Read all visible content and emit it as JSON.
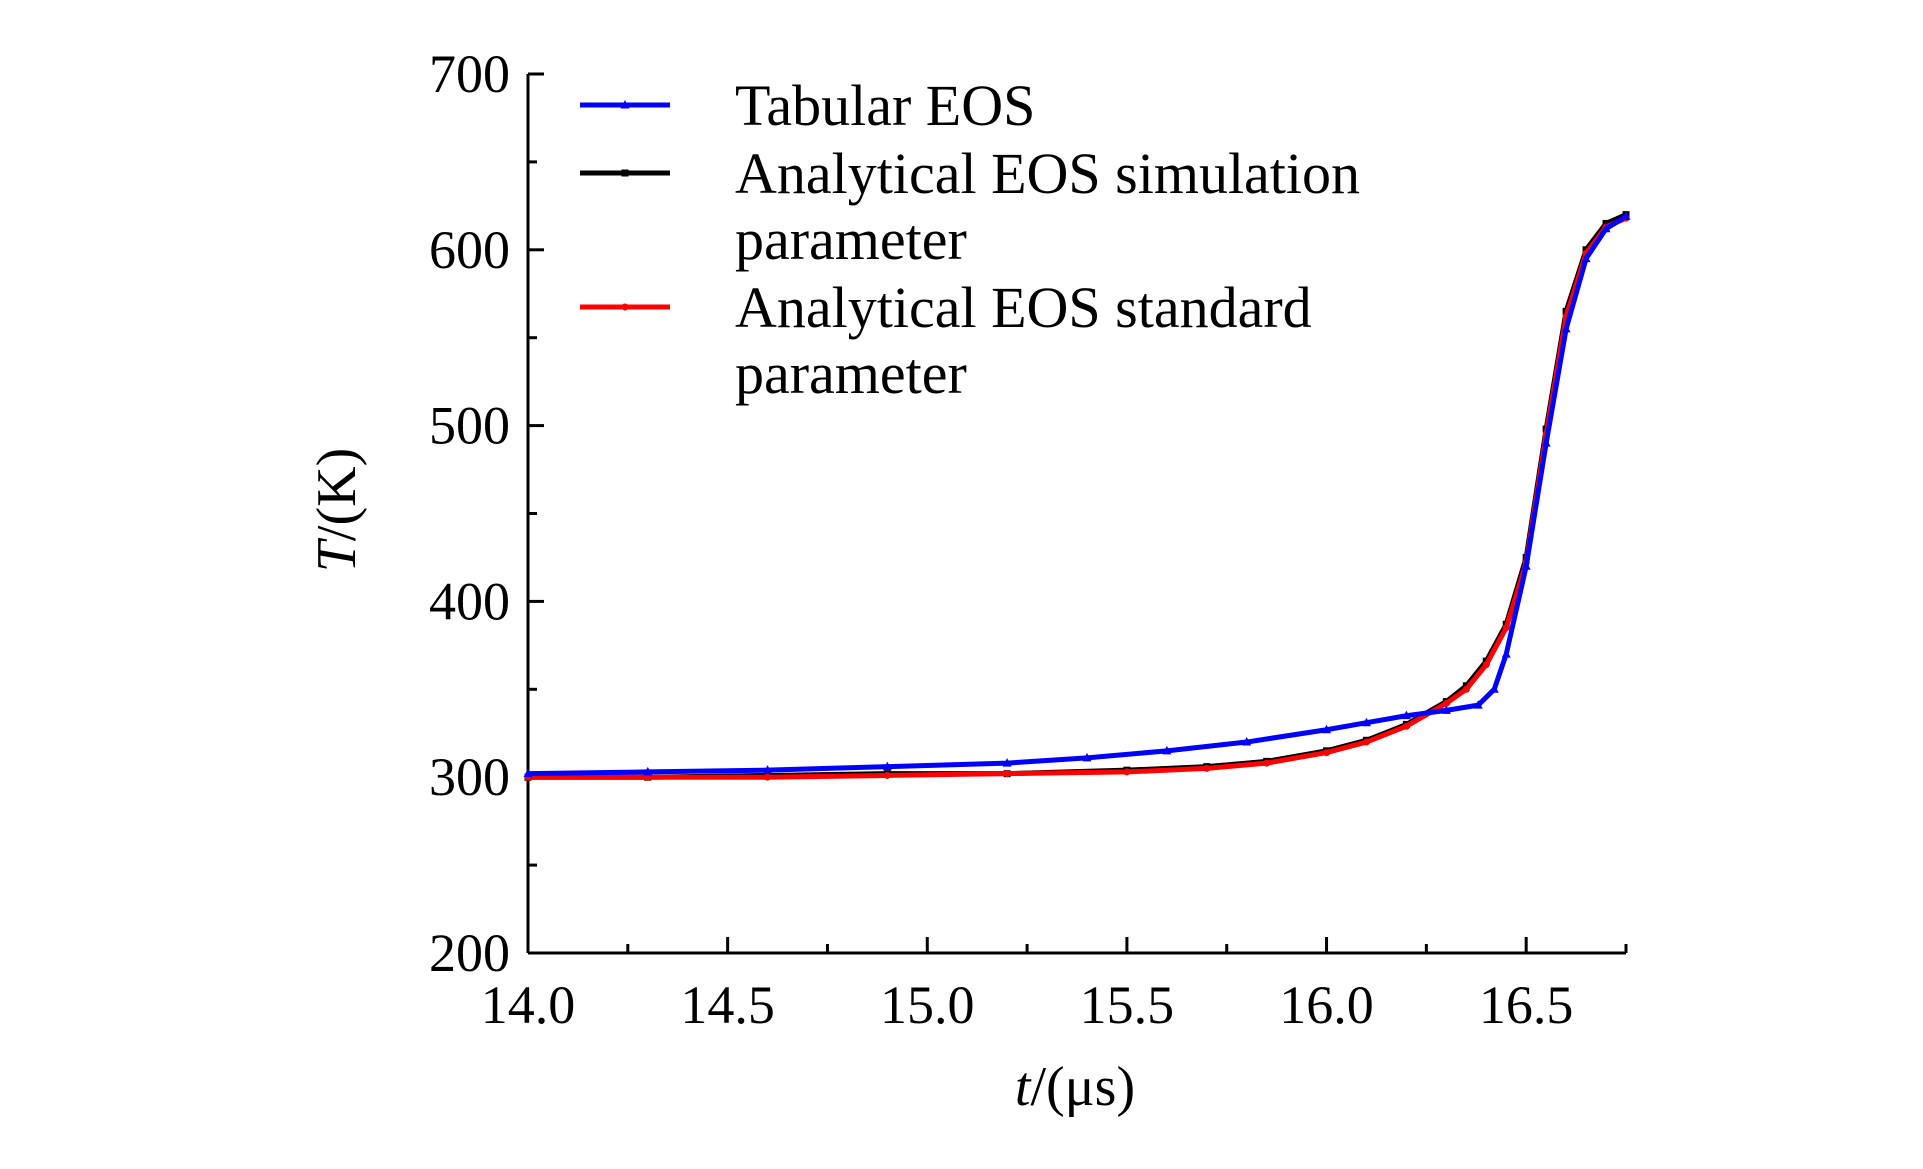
{
  "chart_data": {
    "type": "line",
    "title": "",
    "xlabel": {
      "var": "t",
      "unit": "/(μs)"
    },
    "ylabel": {
      "var": "T",
      "unit": "/(K)"
    },
    "xlim": [
      14.0,
      16.75
    ],
    "ylim": [
      200,
      700
    ],
    "xticks": [
      "14.0",
      "14.5",
      "15.0",
      "15.5",
      "16.0",
      "16.5"
    ],
    "yticks": [
      "200",
      "300",
      "400",
      "500",
      "600",
      "700"
    ],
    "legend_position": "top-left",
    "grid": false,
    "series": [
      {
        "name": "Tabular EOS",
        "legend_lines": [
          "Tabular EOS"
        ],
        "color": "#0000ff",
        "marker": "triangle",
        "x": [
          14.0,
          14.3,
          14.6,
          14.9,
          15.2,
          15.4,
          15.6,
          15.8,
          16.0,
          16.1,
          16.2,
          16.3,
          16.38,
          16.42,
          16.45,
          16.5,
          16.55,
          16.6,
          16.65,
          16.7,
          16.75
        ],
        "y": [
          302,
          303,
          304,
          306,
          308,
          311,
          315,
          320,
          327,
          331,
          335,
          338,
          341,
          350,
          370,
          420,
          490,
          555,
          595,
          612,
          619
        ]
      },
      {
        "name": "Analytical EOS simulation parameter",
        "legend_lines": [
          "Analytical EOS simulation",
          "parameter"
        ],
        "color": "#000000",
        "marker": "square",
        "x": [
          14.0,
          14.3,
          14.6,
          14.9,
          15.2,
          15.5,
          15.7,
          15.85,
          16.0,
          16.1,
          16.2,
          16.3,
          16.35,
          16.4,
          16.45,
          16.5,
          16.55,
          16.6,
          16.65,
          16.7,
          16.75
        ],
        "y": [
          300,
          300,
          301,
          302,
          302,
          304,
          306,
          309,
          315,
          321,
          330,
          343,
          352,
          366,
          387,
          425,
          498,
          565,
          600,
          615,
          620
        ]
      },
      {
        "name": "Analytical EOS standard parameter",
        "legend_lines": [
          "Analytical EOS standard",
          "parameter"
        ],
        "color": "#ff0000",
        "marker": "circle",
        "x": [
          14.0,
          14.3,
          14.6,
          14.9,
          15.2,
          15.5,
          15.7,
          15.85,
          16.0,
          16.1,
          16.2,
          16.3,
          16.35,
          16.4,
          16.45,
          16.5,
          16.55,
          16.6,
          16.65,
          16.7,
          16.75
        ],
        "y": [
          300,
          300,
          300,
          301,
          302,
          303,
          305,
          308,
          314,
          320,
          329,
          342,
          350,
          364,
          385,
          422,
          495,
          562,
          598,
          613,
          618
        ]
      }
    ]
  }
}
